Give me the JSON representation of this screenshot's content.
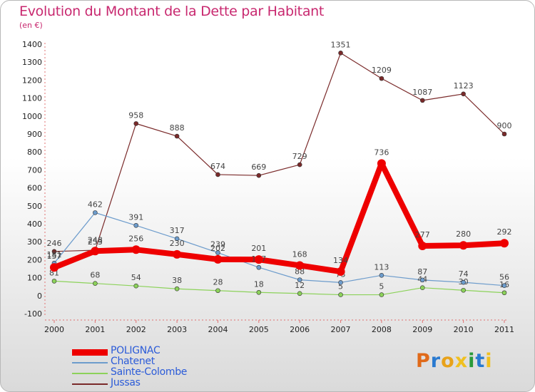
{
  "header": {
    "title": "Evolution du Montant de la Dette par Habitant",
    "subtitle": "(en €)"
  },
  "chart_data": {
    "type": "line",
    "title": "Evolution du Montant de la Dette par Habitant",
    "ylabel": "(en €)",
    "ylim": [
      -100,
      1400
    ],
    "yticks": [
      -100,
      0,
      100,
      200,
      300,
      400,
      500,
      600,
      700,
      800,
      900,
      1000,
      1100,
      1200,
      1300,
      1400
    ],
    "x": [
      "2000",
      "2001",
      "2002",
      "2003",
      "2004",
      "2005",
      "2006",
      "2007",
      "2008",
      "2009",
      "2010",
      "2011"
    ],
    "grid": false,
    "legend_position": "bottom-left",
    "series": [
      {
        "name": "Jussas",
        "color": "#7a2a2a",
        "values": [
          246,
          253,
          958,
          888,
          674,
          669,
          729,
          1351,
          1209,
          1087,
          1123,
          900
        ]
      },
      {
        "name": "Sainte-Colombe",
        "color": "#8cd25a",
        "values": [
          81,
          68,
          54,
          38,
          28,
          18,
          12,
          5,
          5,
          44,
          30,
          16
        ]
      },
      {
        "name": "Chatenet",
        "color": "#6d9ccc",
        "values": [
          181,
          462,
          391,
          317,
          239,
          157,
          88,
          73,
          113,
          87,
          74,
          56
        ]
      },
      {
        "name": "POLIGNAC",
        "color": "#ee0000",
        "values": [
          157,
          248,
          256,
          230,
          202,
          201,
          168,
          134,
          736,
          277,
          280,
          292
        ]
      }
    ],
    "legend_order": [
      "POLIGNAC",
      "Chatenet",
      "Sainte-Colombe",
      "Jussas"
    ]
  },
  "logo": {
    "text": "Proxiti",
    "colors": [
      "#e06a1a",
      "#2a7ad0",
      "#e8a21a",
      "#f0c020",
      "#2a9a3a",
      "#2a7ad0",
      "#f0c020"
    ]
  }
}
